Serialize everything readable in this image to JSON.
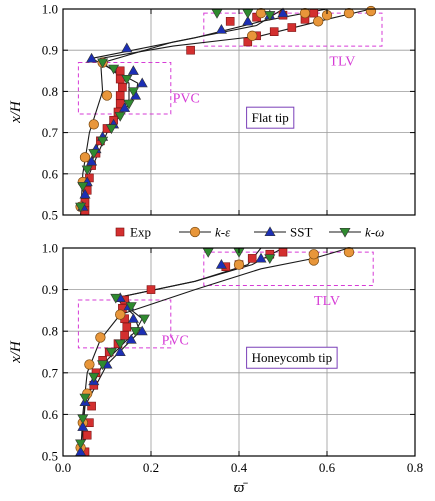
{
  "chart_data": [
    {
      "type": "scatter",
      "panel_label": "Flat tip",
      "xlabel": "",
      "ylabel": "x/H",
      "xlim": [
        0,
        0.8
      ],
      "ylim": [
        0.5,
        1.0
      ],
      "x_ticks": [
        "0.0",
        "0.2",
        "0.4",
        "0.6",
        "0.8"
      ],
      "y_ticks": [
        "0.5",
        "0.6",
        "0.7",
        "0.8",
        "0.9",
        "1.0"
      ],
      "show_x_tick_labels": false,
      "grid": true,
      "annotations": [
        {
          "text": "PVC",
          "box": {
            "x0": 0.035,
            "x1": 0.245,
            "y0": 0.745,
            "y1": 0.87
          },
          "label_at": [
            0.28,
            0.785
          ]
        },
        {
          "text": "TLV",
          "box": {
            "x0": 0.32,
            "x1": 0.725,
            "y0": 0.91,
            "y1": 0.99
          },
          "label_at": [
            0.635,
            0.875
          ]
        }
      ],
      "series": [
        {
          "name": "Exp",
          "marker": "square",
          "color": "#d32f2f",
          "points": [
            [
              0.05,
              0.51
            ],
            [
              0.05,
              0.53
            ],
            [
              0.055,
              0.56
            ],
            [
              0.06,
              0.59
            ],
            [
              0.065,
              0.62
            ],
            [
              0.075,
              0.65
            ],
            [
              0.085,
              0.68
            ],
            [
              0.1,
              0.71
            ],
            [
              0.115,
              0.73
            ],
            [
              0.125,
              0.75
            ],
            [
              0.13,
              0.77
            ],
            [
              0.13,
              0.79
            ],
            [
              0.135,
              0.81
            ],
            [
              0.13,
              0.83
            ],
            [
              0.13,
              0.85
            ],
            [
              0.29,
              0.9
            ],
            [
              0.42,
              0.92
            ],
            [
              0.44,
              0.935
            ],
            [
              0.48,
              0.945
            ],
            [
              0.52,
              0.955
            ],
            [
              0.38,
              0.97
            ],
            [
              0.44,
              0.98
            ],
            [
              0.5,
              0.985
            ],
            [
              0.57,
              0.99
            ],
            [
              0.55,
              0.975
            ]
          ]
        },
        {
          "name": "k-ε",
          "marker": "circle",
          "color": "#e8963a",
          "points": [
            [
              0.04,
              0.52
            ],
            [
              0.045,
              0.58
            ],
            [
              0.05,
              0.64
            ],
            [
              0.07,
              0.72
            ],
            [
              0.1,
              0.79
            ],
            [
              0.09,
              0.87
            ],
            [
              0.43,
              0.935
            ],
            [
              0.58,
              0.97
            ],
            [
              0.65,
              0.99
            ],
            [
              0.7,
              0.995
            ],
            [
              0.6,
              0.985
            ],
            [
              0.55,
              0.99
            ],
            [
              0.45,
              0.99
            ]
          ]
        },
        {
          "name": "SST",
          "marker": "triangle-up",
          "color": "#1c2fb5",
          "points": [
            [
              0.045,
              0.52
            ],
            [
              0.05,
              0.55
            ],
            [
              0.055,
              0.58
            ],
            [
              0.065,
              0.63
            ],
            [
              0.075,
              0.66
            ],
            [
              0.09,
              0.69
            ],
            [
              0.115,
              0.72
            ],
            [
              0.14,
              0.76
            ],
            [
              0.165,
              0.79
            ],
            [
              0.18,
              0.82
            ],
            [
              0.16,
              0.85
            ],
            [
              0.065,
              0.88
            ],
            [
              0.145,
              0.905
            ],
            [
              0.36,
              0.95
            ],
            [
              0.42,
              0.97
            ],
            [
              0.47,
              0.985
            ],
            [
              0.5,
              0.99
            ]
          ]
        },
        {
          "name": "k-ω",
          "marker": "triangle-down",
          "color": "#2f8a2f",
          "points": [
            [
              0.04,
              0.52
            ],
            [
              0.045,
              0.57
            ],
            [
              0.055,
              0.61
            ],
            [
              0.07,
              0.65
            ],
            [
              0.09,
              0.68
            ],
            [
              0.11,
              0.71
            ],
            [
              0.13,
              0.74
            ],
            [
              0.15,
              0.77
            ],
            [
              0.16,
              0.8
            ],
            [
              0.145,
              0.83
            ],
            [
              0.115,
              0.855
            ],
            [
              0.09,
              0.87
            ],
            [
              0.35,
              0.99
            ],
            [
              0.42,
              0.99
            ],
            [
              0.47,
              0.985
            ]
          ]
        }
      ],
      "curves": [
        {
          "name": "k-ε",
          "points": [
            [
              0.04,
              0.5
            ],
            [
              0.045,
              0.6
            ],
            [
              0.06,
              0.7
            ],
            [
              0.09,
              0.8
            ],
            [
              0.085,
              0.88
            ],
            [
              0.25,
              0.91
            ],
            [
              0.45,
              0.935
            ],
            [
              0.6,
              0.975
            ],
            [
              0.7,
              1.0
            ]
          ]
        },
        {
          "name": "SST",
          "points": [
            [
              0.045,
              0.5
            ],
            [
              0.06,
              0.6
            ],
            [
              0.1,
              0.7
            ],
            [
              0.165,
              0.79
            ],
            [
              0.17,
              0.82
            ],
            [
              0.065,
              0.88
            ],
            [
              0.3,
              0.93
            ],
            [
              0.45,
              0.97
            ],
            [
              0.6,
              1.0
            ]
          ]
        },
        {
          "name": "k-ω",
          "points": [
            [
              0.04,
              0.5
            ],
            [
              0.055,
              0.6
            ],
            [
              0.09,
              0.7
            ],
            [
              0.15,
              0.78
            ],
            [
              0.15,
              0.82
            ],
            [
              0.09,
              0.87
            ],
            [
              0.25,
              0.92
            ],
            [
              0.44,
              0.96
            ],
            [
              0.5,
              1.0
            ]
          ]
        }
      ]
    },
    {
      "type": "scatter",
      "panel_label": "Honeycomb tip",
      "xlabel": "ϖ̄",
      "ylabel": "x/H",
      "xlim": [
        0,
        0.8
      ],
      "ylim": [
        0.5,
        1.0
      ],
      "x_ticks": [
        "0.0",
        "0.2",
        "0.4",
        "0.6",
        "0.8"
      ],
      "y_ticks": [
        "0.5",
        "0.6",
        "0.7",
        "0.8",
        "0.9",
        "1.0"
      ],
      "show_x_tick_labels": true,
      "grid": true,
      "annotations": [
        {
          "text": "PVC",
          "box": {
            "x0": 0.035,
            "x1": 0.245,
            "y0": 0.76,
            "y1": 0.875
          },
          "label_at": [
            0.255,
            0.78
          ]
        },
        {
          "text": "TLV",
          "box": {
            "x0": 0.32,
            "x1": 0.705,
            "y0": 0.91,
            "y1": 0.99
          },
          "label_at": [
            0.6,
            0.875
          ]
        }
      ],
      "series": [
        {
          "name": "Exp",
          "marker": "square",
          "color": "#d32f2f",
          "points": [
            [
              0.05,
              0.51
            ],
            [
              0.055,
              0.55
            ],
            [
              0.06,
              0.58
            ],
            [
              0.065,
              0.62
            ],
            [
              0.07,
              0.67
            ],
            [
              0.075,
              0.7
            ],
            [
              0.09,
              0.73
            ],
            [
              0.105,
              0.75
            ],
            [
              0.125,
              0.77
            ],
            [
              0.14,
              0.79
            ],
            [
              0.145,
              0.81
            ],
            [
              0.14,
              0.83
            ],
            [
              0.135,
              0.855
            ],
            [
              0.14,
              0.875
            ],
            [
              0.2,
              0.9
            ],
            [
              0.37,
              0.955
            ],
            [
              0.4,
              0.96
            ],
            [
              0.43,
              0.975
            ],
            [
              0.47,
              0.985
            ],
            [
              0.5,
              0.99
            ]
          ]
        },
        {
          "name": "k-ε",
          "marker": "circle",
          "color": "#e8963a",
          "points": [
            [
              0.04,
              0.52
            ],
            [
              0.045,
              0.58
            ],
            [
              0.055,
              0.65
            ],
            [
              0.06,
              0.72
            ],
            [
              0.085,
              0.785
            ],
            [
              0.13,
              0.84
            ],
            [
              0.4,
              0.96
            ],
            [
              0.57,
              0.97
            ],
            [
              0.57,
              0.985
            ],
            [
              0.65,
              0.99
            ]
          ]
        },
        {
          "name": "SST",
          "marker": "triangle-up",
          "color": "#1c2fb5",
          "points": [
            [
              0.04,
              0.51
            ],
            [
              0.045,
              0.57
            ],
            [
              0.05,
              0.63
            ],
            [
              0.07,
              0.68
            ],
            [
              0.1,
              0.72
            ],
            [
              0.13,
              0.75
            ],
            [
              0.155,
              0.78
            ],
            [
              0.18,
              0.8
            ],
            [
              0.16,
              0.83
            ],
            [
              0.15,
              0.86
            ],
            [
              0.13,
              0.88
            ],
            [
              0.36,
              0.96
            ],
            [
              0.45,
              0.975
            ]
          ]
        },
        {
          "name": "k-ω",
          "marker": "triangle-down",
          "color": "#2f8a2f",
          "points": [
            [
              0.04,
              0.53
            ],
            [
              0.045,
              0.59
            ],
            [
              0.05,
              0.64
            ],
            [
              0.07,
              0.69
            ],
            [
              0.09,
              0.72
            ],
            [
              0.11,
              0.75
            ],
            [
              0.13,
              0.77
            ],
            [
              0.165,
              0.8
            ],
            [
              0.185,
              0.83
            ],
            [
              0.155,
              0.86
            ],
            [
              0.12,
              0.88
            ],
            [
              0.33,
              0.99
            ],
            [
              0.4,
              0.99
            ],
            [
              0.47,
              0.975
            ]
          ]
        }
      ],
      "curves": [
        {
          "name": "k-ε",
          "points": [
            [
              0.04,
              0.5
            ],
            [
              0.045,
              0.6
            ],
            [
              0.055,
              0.7
            ],
            [
              0.085,
              0.78
            ],
            [
              0.13,
              0.84
            ],
            [
              0.3,
              0.9
            ],
            [
              0.45,
              0.95
            ],
            [
              0.57,
              0.975
            ],
            [
              0.65,
              1.0
            ]
          ]
        },
        {
          "name": "SST",
          "points": [
            [
              0.04,
              0.5
            ],
            [
              0.05,
              0.62
            ],
            [
              0.1,
              0.72
            ],
            [
              0.175,
              0.8
            ],
            [
              0.16,
              0.84
            ],
            [
              0.12,
              0.88
            ],
            [
              0.3,
              0.92
            ],
            [
              0.43,
              0.96
            ],
            [
              0.5,
              1.0
            ]
          ]
        },
        {
          "name": "k-ω",
          "points": [
            [
              0.04,
              0.5
            ],
            [
              0.05,
              0.63
            ],
            [
              0.09,
              0.72
            ],
            [
              0.165,
              0.8
            ],
            [
              0.18,
              0.83
            ],
            [
              0.12,
              0.88
            ],
            [
              0.3,
              0.92
            ],
            [
              0.42,
              0.96
            ],
            [
              0.45,
              1.0
            ]
          ]
        }
      ]
    }
  ],
  "legend": {
    "placement": "between-panels",
    "entries": [
      {
        "label": "Exp",
        "marker": "square",
        "color": "#d32f2f",
        "line": false
      },
      {
        "label": "k-ε",
        "marker": "circle",
        "color": "#e8963a",
        "line": true
      },
      {
        "label": "SST",
        "marker": "triangle-up",
        "color": "#1c2fb5",
        "line": true
      },
      {
        "label": "k-ω",
        "marker": "triangle-down",
        "color": "#2f8a2f",
        "line": true
      }
    ]
  },
  "colors": {
    "annotation": "#d63bd6",
    "grid": "#9a9a9a",
    "curve": "#1a1a1a",
    "label_box": "#7a3fb8"
  }
}
